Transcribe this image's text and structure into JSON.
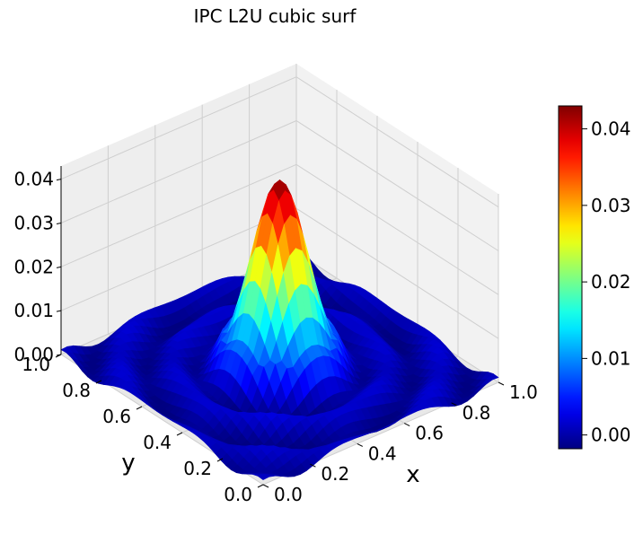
{
  "chart_data": {
    "type": "surface3d",
    "title": "IPC L2U cubic surf",
    "xlabel": "x",
    "ylabel": "y",
    "zlabel": "",
    "x_ticks": [
      "0.0",
      "0.2",
      "0.4",
      "0.6",
      "0.8",
      "1.0"
    ],
    "y_ticks": [
      "0.0",
      "0.2",
      "0.4",
      "0.6",
      "0.8",
      "1.0"
    ],
    "z_ticks": [
      "0.00",
      "0.01",
      "0.02",
      "0.03",
      "0.04"
    ],
    "xlim": [
      0,
      1
    ],
    "ylim": [
      0,
      1
    ],
    "zlim": [
      0,
      0.043
    ],
    "colormap": "jet",
    "colorbar": {
      "ticks": [
        "0.00",
        "0.01",
        "0.02",
        "0.03",
        "0.04"
      ],
      "range": [
        -0.0018,
        0.043
      ]
    },
    "surface": {
      "peak_location": [
        0.5,
        0.5
      ],
      "peak_value": 0.043,
      "min_value": -0.0018,
      "description_function": "sinc-like ripple centered at (0.5,0.5)"
    },
    "grid": true
  }
}
